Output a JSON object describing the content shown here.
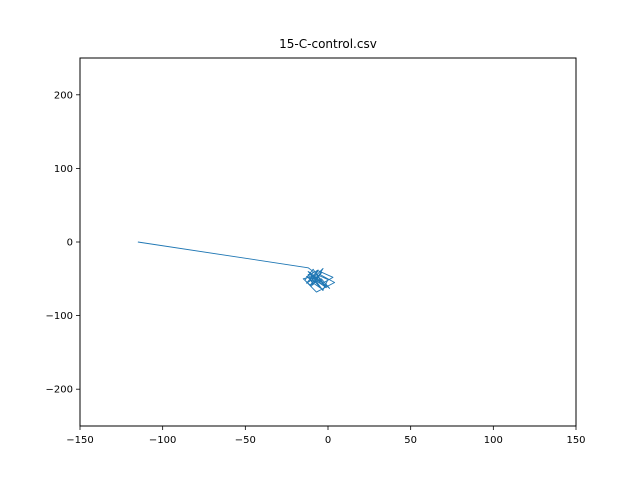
{
  "chart_data": {
    "type": "line",
    "title": "15-C-control.csv",
    "xlabel": "",
    "ylabel": "",
    "xlim": [
      -150,
      150
    ],
    "ylim": [
      -250,
      250
    ],
    "xticks": [
      -150,
      -100,
      -50,
      0,
      50,
      100,
      150
    ],
    "yticks": [
      -200,
      -100,
      0,
      100,
      200
    ],
    "xtick_labels": [
      "−150",
      "−100",
      "−50",
      "0",
      "50",
      "100",
      "150"
    ],
    "ytick_labels": [
      "−200",
      "−100",
      "0",
      "100",
      "200"
    ],
    "grid": false,
    "series": [
      {
        "color": "#1f77b4",
        "x": [
          -115,
          -12,
          -9,
          -11,
          -6,
          -13,
          -8,
          -4,
          -10,
          -15,
          -7,
          -3,
          -9,
          -12,
          -5,
          -1,
          -7,
          -11,
          -4,
          3,
          -6,
          -10,
          -3,
          0,
          -8,
          -13,
          -6,
          -2,
          -9,
          -14,
          -7,
          4,
          -5,
          -11,
          -4,
          1,
          -8,
          -12,
          -6,
          -3,
          -10,
          -5,
          -2,
          -9,
          -7
        ],
        "y": [
          0,
          -35,
          -40,
          -52,
          -38,
          -47,
          -55,
          -42,
          -60,
          -50,
          -45,
          -36,
          -58,
          -44,
          -49,
          -62,
          -53,
          -41,
          -57,
          -48,
          -39,
          -54,
          -65,
          -51,
          -43,
          -56,
          -46,
          -61,
          -37,
          -52,
          -68,
          -55,
          -44,
          -59,
          -50,
          -63,
          -47,
          -40,
          -57,
          -66,
          -49,
          -53,
          -58,
          -45,
          -51
        ]
      }
    ]
  }
}
